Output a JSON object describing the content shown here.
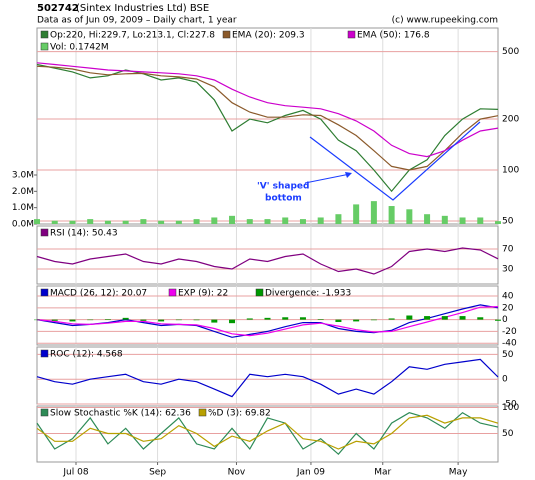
{
  "header": {
    "symbol": "502742",
    "name": "(Sintex Industries Ltd) BSE",
    "subtitle": "Data as of Jun 09, 2009 – Daily chart, 1 year",
    "credit": "(c) www.rupeeking.com"
  },
  "chart_data": {
    "type": "multi-panel",
    "x": [
      0,
      2,
      4,
      6,
      8,
      10,
      12,
      14,
      16,
      18,
      20,
      22,
      24,
      26,
      28,
      30,
      32,
      34,
      36,
      38,
      40,
      42,
      44,
      46,
      48,
      50,
      52
    ],
    "xlim": [
      0,
      52
    ],
    "xticks": [
      {
        "value": 4.4,
        "label": "Jul 08"
      },
      {
        "value": 13.6,
        "label": "Sep"
      },
      {
        "value": 22.5,
        "label": "Nov"
      },
      {
        "value": 30.9,
        "label": "Jan 09"
      },
      {
        "value": 39.0,
        "label": "Mar"
      },
      {
        "value": 47.5,
        "label": "May"
      }
    ],
    "panels": [
      {
        "type": "line",
        "log_scale": true,
        "grid": true,
        "ylim": [
          48,
          690
        ],
        "yticks": [
          500,
          200,
          100,
          50
        ],
        "y2lim": [
          0,
          12
        ],
        "y2ticks": [
          {
            "value": 3,
            "label": "3.0M"
          },
          {
            "value": 2,
            "label": "2.0M"
          },
          {
            "value": 1,
            "label": "1.0M"
          },
          {
            "value": 0,
            "label": "0.0M"
          }
        ],
        "annotations": [
          "'V' shaped",
          "bottom"
        ],
        "series": [
          {
            "name": "Op:220, Hi:229.7, Lo:213.1, Cl:227.8",
            "color": "#2e7d32",
            "values": [
              420,
              400,
              380,
              350,
              360,
              390,
              370,
              340,
              350,
              330,
              260,
              170,
              200,
              190,
              210,
              225,
              200,
              150,
              130,
              100,
              75,
              100,
              115,
              160,
              200,
              230,
              228
            ]
          },
          {
            "name": "EMA (20): 209.3",
            "color": "#8b5a2b",
            "values": [
              410,
              405,
              395,
              375,
              365,
              370,
              372,
              360,
              355,
              345,
              310,
              250,
              220,
              205,
              205,
              212,
              210,
              185,
              160,
              130,
              105,
              100,
              105,
              130,
              165,
              200,
              209.3
            ]
          },
          {
            "name": "EMA (50): 176.8",
            "color": "#cc00cc",
            "values": [
              430,
              420,
              410,
              400,
              390,
              385,
              380,
              375,
              370,
              360,
              340,
              300,
              270,
              250,
              240,
              235,
              230,
              215,
              195,
              170,
              140,
              125,
              120,
              130,
              150,
              170,
              176.8
            ]
          },
          {
            "name": "Vol: 0.1742M",
            "color": "#66cc66",
            "type": "bar",
            "axis": "y2",
            "values": [
              0.3,
              0.2,
              0.2,
              0.3,
              0.2,
              0.2,
              0.3,
              0.2,
              0.2,
              0.3,
              0.4,
              0.5,
              0.3,
              0.3,
              0.4,
              0.3,
              0.4,
              0.6,
              1.2,
              1.4,
              1.1,
              0.9,
              0.6,
              0.5,
              0.4,
              0.4,
              0.1742
            ]
          }
        ]
      },
      {
        "type": "line",
        "grid": true,
        "ylim": [
          0,
          116
        ],
        "yticks": [
          70,
          30
        ],
        "series": [
          {
            "name": "RSI (14): 50.43",
            "color": "#800080",
            "values": [
              55,
              45,
              40,
              50,
              55,
              60,
              45,
              40,
              50,
              45,
              35,
              30,
              50,
              45,
              55,
              60,
              40,
              25,
              30,
              20,
              35,
              65,
              70,
              65,
              72,
              68,
              50.43
            ]
          }
        ]
      },
      {
        "type": "line",
        "grid": true,
        "ylim": [
          -43,
          57
        ],
        "yticks": [
          40,
          20,
          0,
          -20,
          -40
        ],
        "series": [
          {
            "name": "MACD (26, 12): 20.07",
            "color": "#0000cc",
            "values": [
              0,
              -5,
              -10,
              -8,
              -5,
              0,
              -5,
              -10,
              -8,
              -10,
              -20,
              -30,
              -25,
              -20,
              -12,
              -5,
              -5,
              -15,
              -20,
              -22,
              -18,
              -5,
              2,
              10,
              18,
              25,
              20.07
            ]
          },
          {
            "name": "EXP (9): 22",
            "color": "#ee00ee",
            "values": [
              0,
              -3,
              -7,
              -8,
              -6,
              -3,
              -3,
              -7,
              -8,
              -9,
              -15,
              -24,
              -27,
              -23,
              -16,
              -9,
              -6,
              -11,
              -17,
              -21,
              -20,
              -12,
              -4,
              4,
              12,
              21,
              22
            ]
          },
          {
            "name": "Divergence: -1.933",
            "color": "#009900",
            "type": "bar",
            "values": [
              0,
              -2,
              -3,
              0,
              1,
              3,
              -2,
              -3,
              0,
              -1,
              -5,
              -6,
              2,
              3,
              4,
              4,
              1,
              -4,
              -3,
              -1,
              2,
              7,
              6,
              6,
              6,
              4,
              -1.933
            ]
          }
        ]
      },
      {
        "type": "line",
        "grid": true,
        "ylim": [
          -50,
          65
        ],
        "yticks": [
          50,
          0,
          -50
        ],
        "series": [
          {
            "name": "ROC (12): 4.568",
            "color": "#0000cc",
            "values": [
              5,
              -5,
              -10,
              0,
              5,
              10,
              -5,
              -10,
              0,
              -5,
              -20,
              -35,
              10,
              5,
              10,
              5,
              -10,
              -30,
              -20,
              -30,
              -5,
              25,
              20,
              30,
              35,
              40,
              4.568
            ]
          }
        ]
      },
      {
        "type": "line",
        "grid": true,
        "ylim": [
          -5,
          103
        ],
        "yticks": [
          100,
          50
        ],
        "series": [
          {
            "name": "Slow Stochastic %K (14): 62.36",
            "color": "#2e8b57",
            "values": [
              70,
              20,
              40,
              80,
              30,
              60,
              20,
              50,
              80,
              30,
              20,
              60,
              20,
              80,
              70,
              20,
              40,
              10,
              50,
              20,
              70,
              90,
              80,
              60,
              90,
              70,
              62.36
            ]
          },
          {
            "name": "%D (3): 69.82",
            "color": "#b8a000",
            "values": [
              60,
              35,
              35,
              60,
              50,
              50,
              35,
              40,
              65,
              50,
              25,
              45,
              35,
              55,
              70,
              40,
              35,
              20,
              35,
              30,
              50,
              80,
              85,
              70,
              80,
              80,
              69.82
            ]
          }
        ]
      }
    ]
  }
}
